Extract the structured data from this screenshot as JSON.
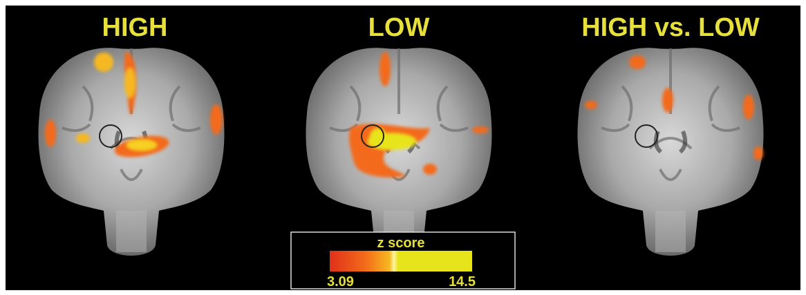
{
  "panels": [
    {
      "title": "HIGH"
    },
    {
      "title": "LOW"
    },
    {
      "title": "HIGH vs. LOW"
    }
  ],
  "colorbar": {
    "title": "z score",
    "min_label": "3.09",
    "max_label": "14.5"
  }
}
